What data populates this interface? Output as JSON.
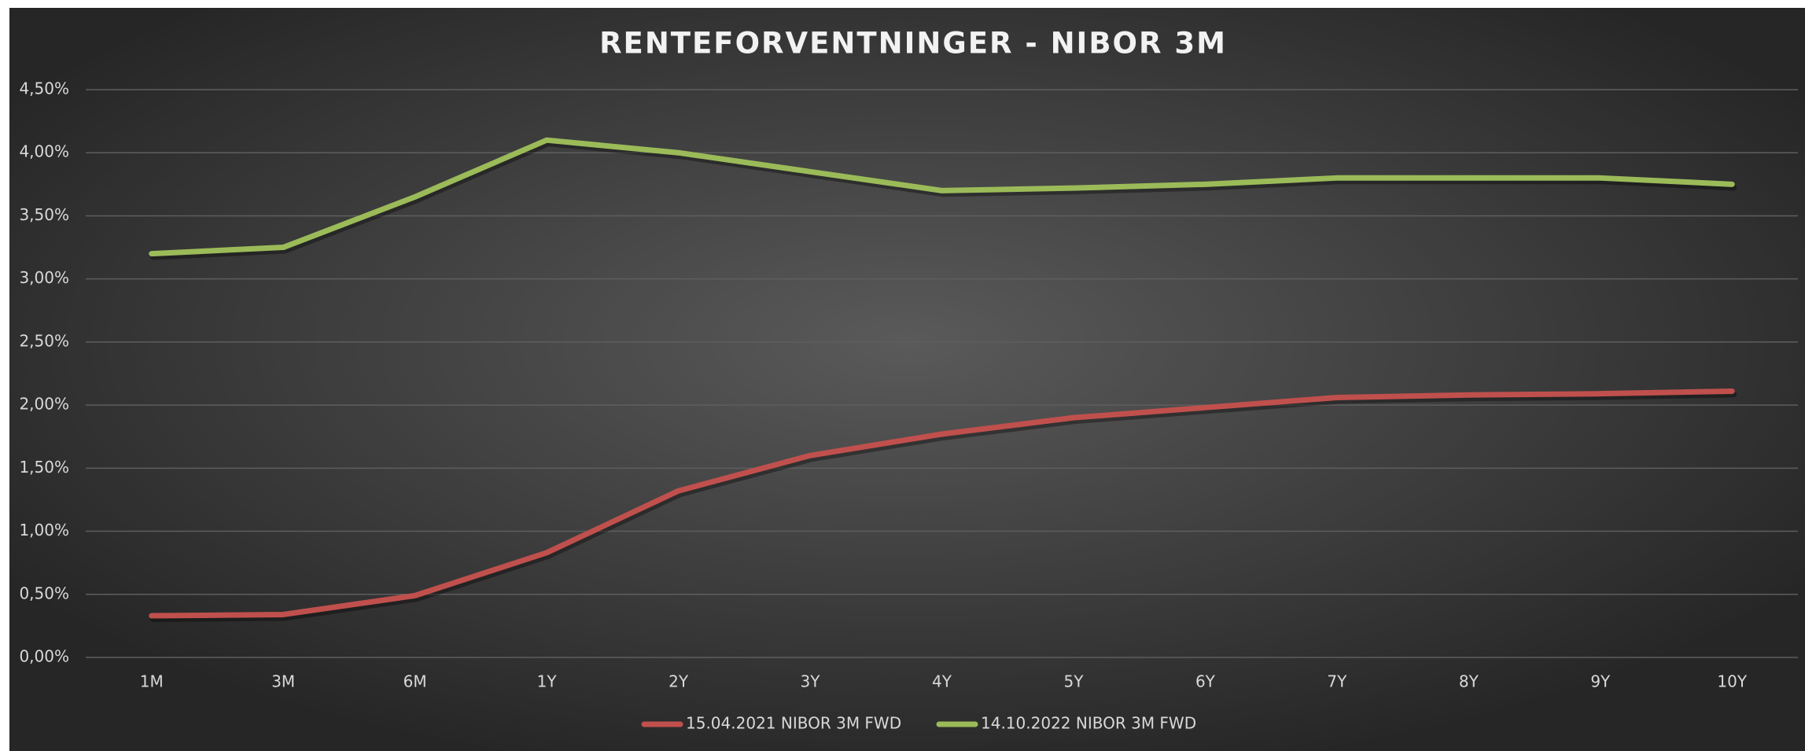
{
  "chart_data": {
    "type": "line",
    "title": "RENTEFORVENTNINGER - NIBOR 3M",
    "categories": [
      "1M",
      "3M",
      "6M",
      "1Y",
      "2Y",
      "3Y",
      "4Y",
      "5Y",
      "6Y",
      "7Y",
      "8Y",
      "9Y",
      "10Y"
    ],
    "series": [
      {
        "name": "15.04.2021 NIBOR 3M FWD",
        "color": "#c0504d",
        "values": [
          0.33,
          0.34,
          0.49,
          0.83,
          1.32,
          1.6,
          1.77,
          1.9,
          1.98,
          2.06,
          2.08,
          2.09,
          2.11
        ]
      },
      {
        "name": "14.10.2022 NIBOR 3M FWD",
        "color": "#9bbb59",
        "values": [
          3.2,
          3.25,
          3.65,
          4.1,
          4.0,
          3.85,
          3.7,
          3.72,
          3.75,
          3.8,
          3.8,
          3.8,
          3.75
        ]
      }
    ],
    "ylim": [
      0,
      4.5
    ],
    "yticks": [
      {
        "value": 0,
        "label": "0,00%"
      },
      {
        "value": 0.5,
        "label": "0,50%"
      },
      {
        "value": 1,
        "label": "1,00%"
      },
      {
        "value": 1.5,
        "label": "1,50%"
      },
      {
        "value": 2,
        "label": "2,00%"
      },
      {
        "value": 2.5,
        "label": "2,50%"
      },
      {
        "value": 3,
        "label": "3,00%"
      },
      {
        "value": 3.5,
        "label": "3,50%"
      },
      {
        "value": 4,
        "label": "4,00%"
      },
      {
        "value": 4.5,
        "label": "4,50%"
      }
    ],
    "grid": true,
    "legend": "bottom"
  }
}
